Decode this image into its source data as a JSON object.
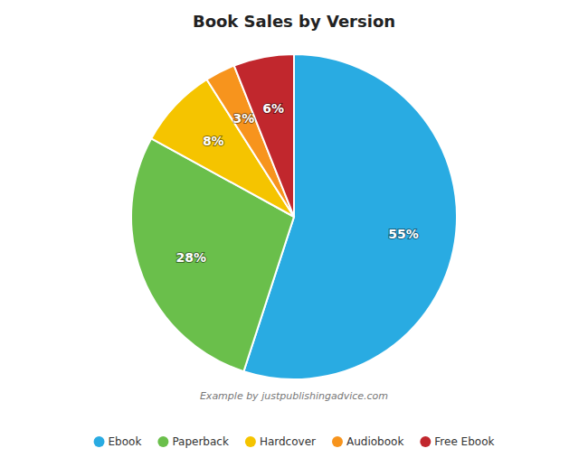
{
  "chart_data": {
    "type": "pie",
    "title": "Book Sales by Version",
    "categories": [
      "Ebook",
      "Paperback",
      "Hardcover",
      "Audiobook",
      "Free Ebook"
    ],
    "values": [
      55,
      28,
      8,
      3,
      6
    ],
    "value_labels": [
      "55%",
      "28%",
      "8%",
      "3%",
      "6%"
    ],
    "colors": [
      "#29ABE2",
      "#6ABF4B",
      "#F5C400",
      "#F7941D",
      "#C1272D"
    ],
    "data_labels": true,
    "legend": "bottom",
    "annotations": [
      "Example by justpublishingadvice.com"
    ]
  }
}
